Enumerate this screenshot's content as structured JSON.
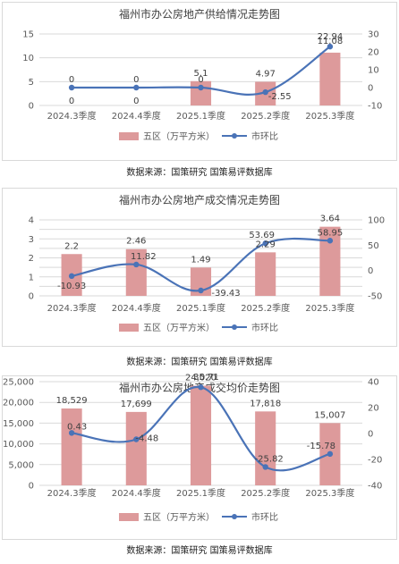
{
  "source_line": "数据来源：国策研究  国策易评数据库",
  "legend_labels": {
    "bar": "五区（万平方米）",
    "line": "市环比"
  },
  "colors": {
    "bar": "#dd9a9b",
    "line": "#4a73b7"
  },
  "chart_data": [
    {
      "type": "bar+line",
      "title": "福州市办公房地产供给情况走势图",
      "categories": [
        "2024.3季度",
        "2024.4季度",
        "2025.1季度",
        "2025.2季度",
        "2025.3季度"
      ],
      "series": [
        {
          "name": "五区（万平方米）",
          "type": "bar",
          "axis": "left",
          "values": [
            0,
            0,
            5.1,
            4.97,
            11.08
          ],
          "labels": [
            "0",
            "0",
            "5.1",
            "4.97",
            "11.08"
          ]
        },
        {
          "name": "市环比",
          "type": "line",
          "axis": "right",
          "values": [
            0,
            0,
            0,
            -2.55,
            22.94
          ],
          "labels": [
            "0",
            "0",
            "0",
            "-2.55",
            "22.94"
          ]
        }
      ],
      "ylim_left": [
        0,
        15
      ],
      "yticks_left": [
        0,
        5,
        10,
        15
      ],
      "ytick_labels_left": [
        "0",
        "5",
        "10",
        "15"
      ],
      "ylim_right": [
        -10,
        30
      ],
      "yticks_right": [
        -10,
        0,
        10,
        20,
        30
      ],
      "ytick_labels_right": [
        "-10",
        "0",
        "10",
        "20",
        "30"
      ],
      "grid": true,
      "legend_position": "bottom"
    },
    {
      "type": "bar+line",
      "title": "福州市办公房地产成交情况走势图",
      "categories": [
        "2024.3季度",
        "2024.4季度",
        "2025.1季度",
        "2025.2季度",
        "2025.3季度"
      ],
      "series": [
        {
          "name": "五区（万平方米）",
          "type": "bar",
          "axis": "left",
          "values": [
            2.2,
            2.46,
            1.49,
            2.29,
            3.64
          ],
          "labels": [
            "2.2",
            "2.46",
            "1.49",
            "2.29",
            "3.64"
          ]
        },
        {
          "name": "市环比",
          "type": "line",
          "axis": "right",
          "values": [
            -10.93,
            11.82,
            -39.43,
            53.69,
            58.95
          ],
          "labels": [
            "-10.93",
            "11.82",
            "-39.43",
            "53.69",
            "58.95"
          ]
        }
      ],
      "ylim_left": [
        0,
        4
      ],
      "yticks_left": [
        0,
        0.5,
        1,
        1.5,
        2,
        2.5,
        3,
        3.5,
        4
      ],
      "ytick_labels_left": [
        "0",
        "",
        "1",
        "",
        "2",
        "",
        "3",
        "",
        "4"
      ],
      "ylim_right": [
        -50,
        100
      ],
      "yticks_right": [
        -50,
        0,
        50,
        100
      ],
      "ytick_labels_right": [
        "-50",
        "0",
        "50",
        "100"
      ],
      "grid": true,
      "legend_position": "bottom"
    },
    {
      "type": "bar+line",
      "title": "福州市办公房地产成交均价走势图",
      "categories": [
        "2024.3季度",
        "2024.4季度",
        "2025.1季度",
        "2025.2季度",
        "2025.3季度"
      ],
      "series": [
        {
          "name": "五区（万平方米）",
          "type": "bar",
          "axis": "left",
          "values": [
            18529,
            17699,
            24020,
            17818,
            15007
          ],
          "labels": [
            "18,529",
            "17,699",
            "24,020",
            "17,818",
            "15,007"
          ]
        },
        {
          "name": "市环比",
          "type": "line",
          "axis": "right",
          "values": [
            0.43,
            -4.48,
            35.71,
            -25.82,
            -15.78
          ],
          "labels": [
            "0.43",
            "-4.48",
            "35.71",
            "-25.82",
            "-15.78"
          ]
        }
      ],
      "ylim_left": [
        0,
        25000
      ],
      "yticks_left": [
        0,
        5000,
        10000,
        15000,
        20000,
        25000
      ],
      "ytick_labels_left": [
        "0",
        "5,000",
        "10,000",
        "15,000",
        "20,000",
        "25,000"
      ],
      "ylim_right": [
        -40,
        40
      ],
      "yticks_right": [
        -40,
        -20,
        0,
        20,
        40
      ],
      "ytick_labels_right": [
        "-40",
        "-20",
        "0",
        "20",
        "40"
      ],
      "grid": true,
      "legend_position": "bottom"
    }
  ]
}
